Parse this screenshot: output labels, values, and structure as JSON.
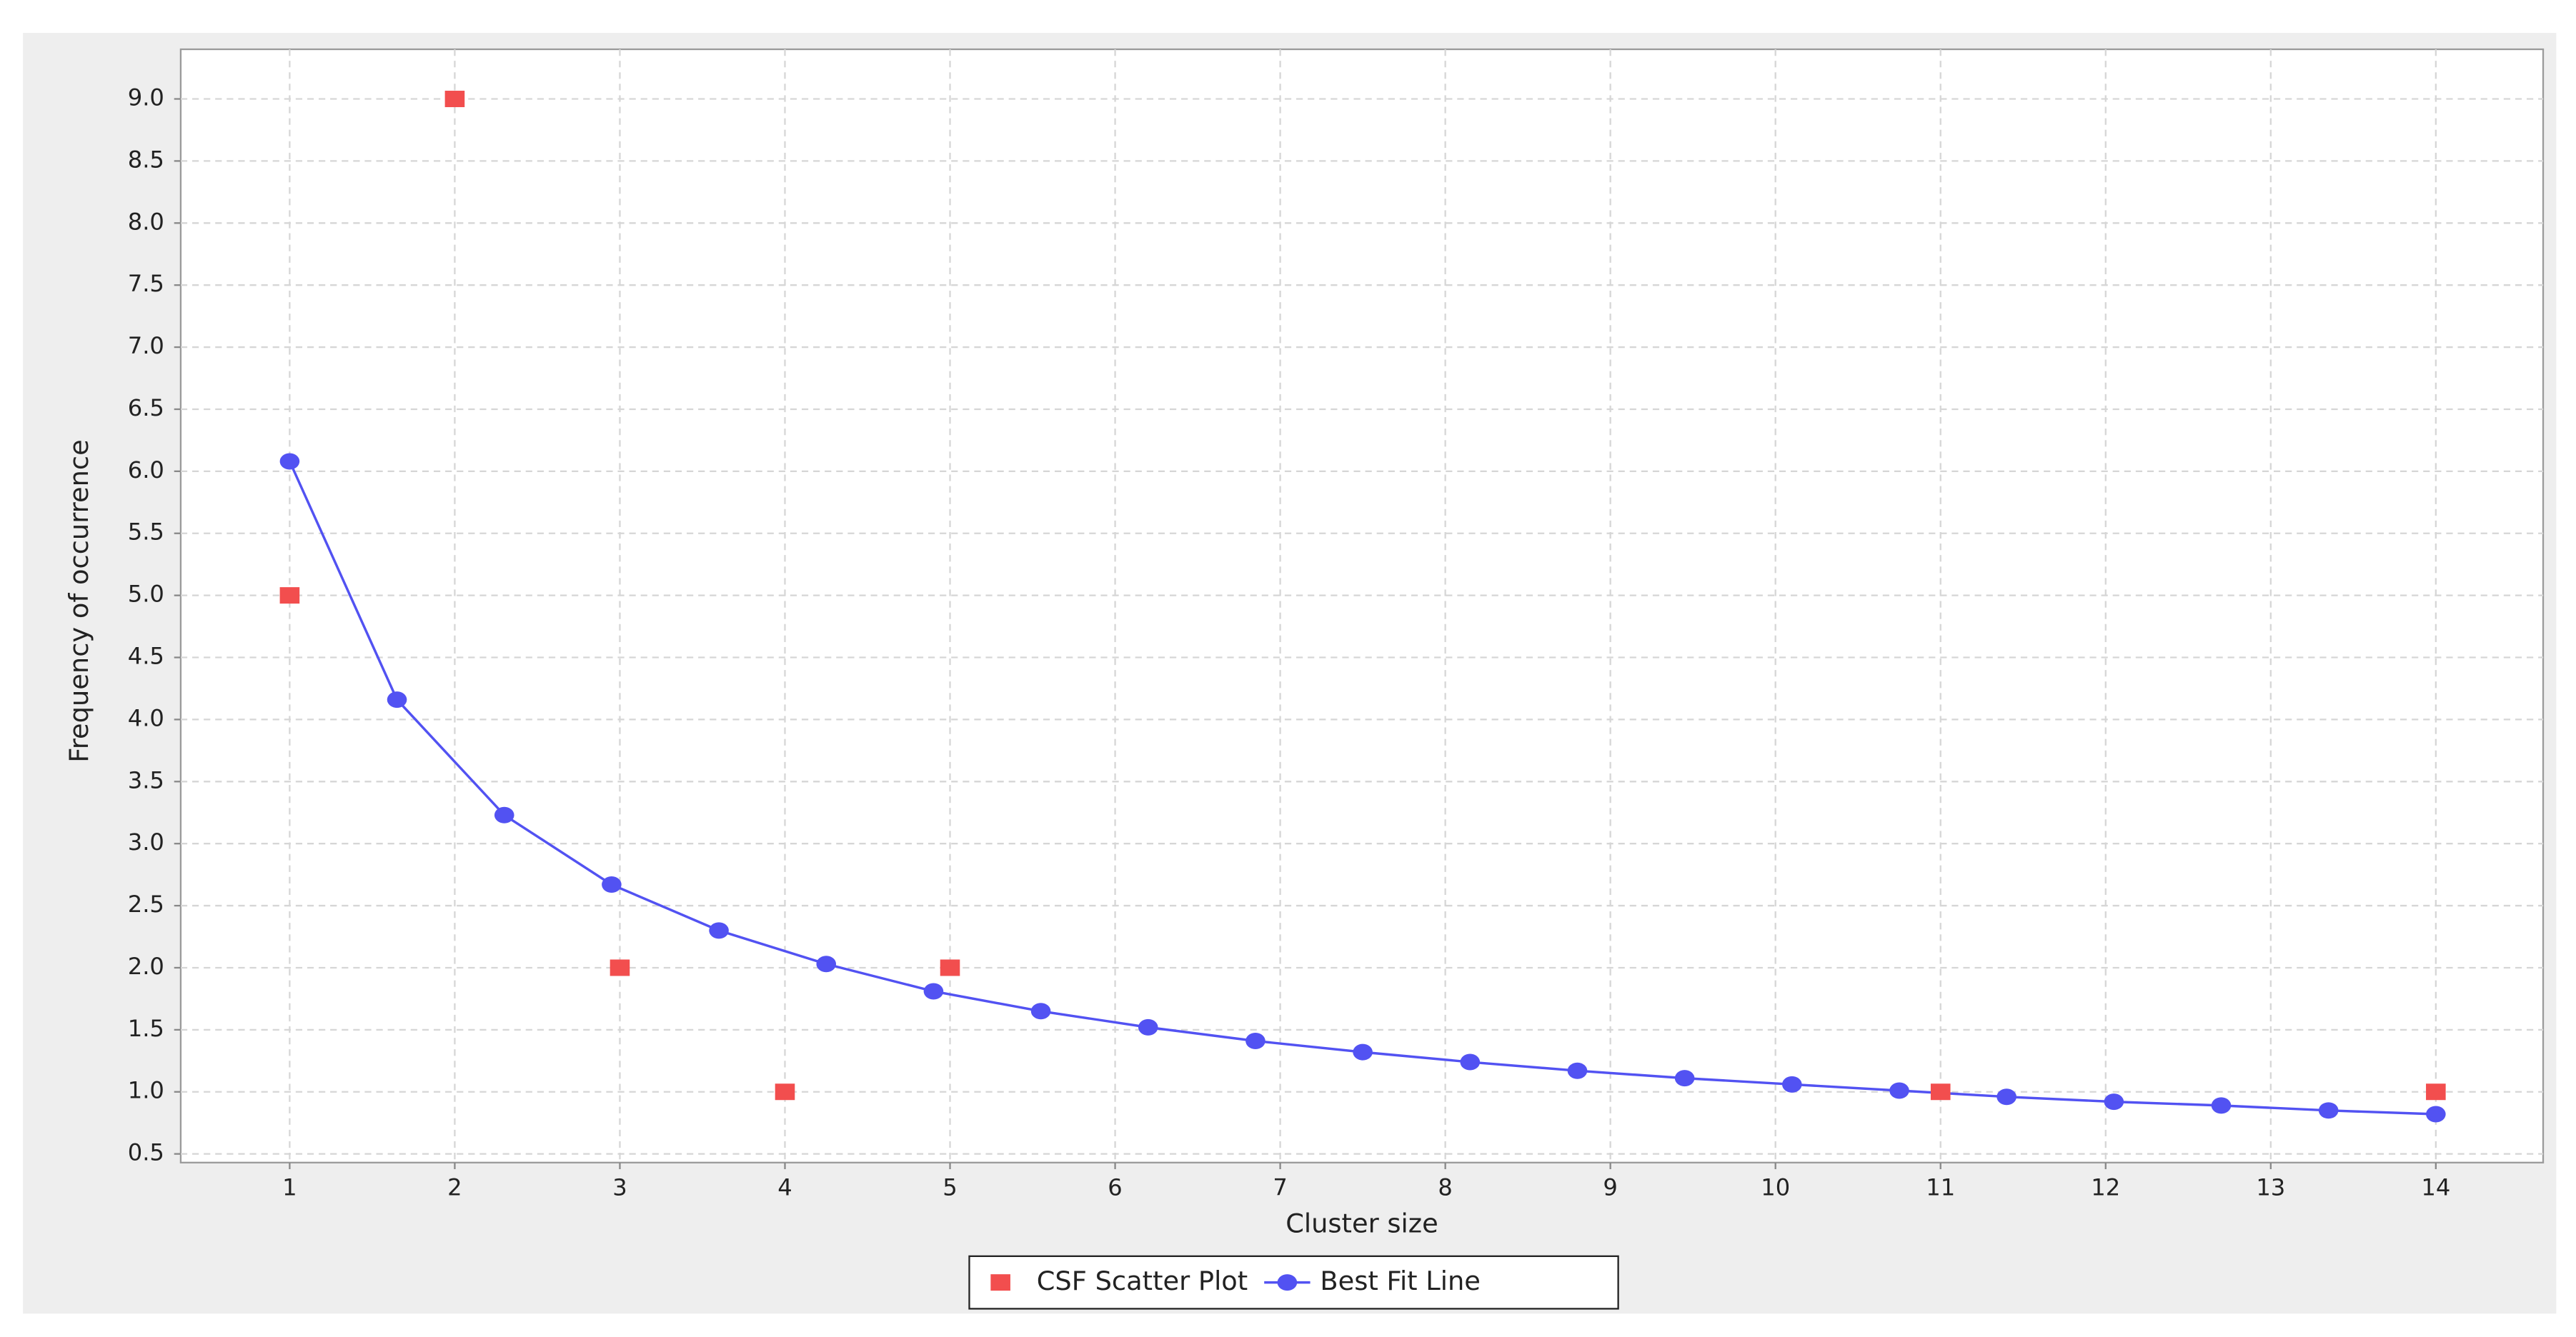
{
  "chart_data": {
    "type": "scatter",
    "x_label": "Cluster size",
    "y_label": "Frequency of occurrence",
    "xlim": [
      0.34,
      14.65
    ],
    "ylim": [
      0.43,
      9.4
    ],
    "xticks": [
      1,
      2,
      3,
      4,
      5,
      6,
      7,
      8,
      9,
      10,
      11,
      12,
      13,
      14
    ],
    "yticks": [
      0.5,
      {
        "value": 1,
        "label": "1.0"
      },
      1.5,
      {
        "value": 2,
        "label": "2.0"
      },
      2.5,
      {
        "value": 3,
        "label": "3.0"
      },
      3.5,
      {
        "value": 4,
        "label": "4.0"
      },
      4.5,
      {
        "value": 5,
        "label": "5.0"
      },
      5.5,
      {
        "value": 6,
        "label": "6.0"
      },
      6.5,
      {
        "value": 7,
        "label": "7.0"
      },
      7.5,
      {
        "value": 8,
        "label": "8.0"
      },
      8.5,
      {
        "value": 9,
        "label": "9.0"
      }
    ],
    "grid": true,
    "legend": "bottom",
    "series": [
      {
        "name": "CSF Scatter Plot",
        "type": "scatter",
        "marker": "square",
        "color": "#f24e4e",
        "x": [
          1,
          2,
          3,
          4,
          5,
          11,
          14
        ],
        "values": [
          5,
          9,
          2,
          1,
          2,
          1,
          1
        ]
      },
      {
        "name": "Best Fit Line",
        "type": "line",
        "marker": "circle",
        "color": "#5252f2",
        "x": [
          1,
          1.65,
          2.3,
          2.95,
          3.6,
          4.25,
          4.9,
          5.55,
          6.2,
          6.85,
          7.5,
          8.15,
          8.8,
          9.45,
          10.1,
          10.75,
          11.4,
          12.05,
          12.7,
          13.35,
          14
        ],
        "values": [
          6.08,
          4.16,
          3.23,
          2.67,
          2.3,
          2.03,
          1.81,
          1.65,
          1.52,
          1.41,
          1.32,
          1.24,
          1.17,
          1.11,
          1.06,
          1.01,
          0.96,
          0.92,
          0.89,
          0.85,
          0.82
        ]
      }
    ]
  }
}
